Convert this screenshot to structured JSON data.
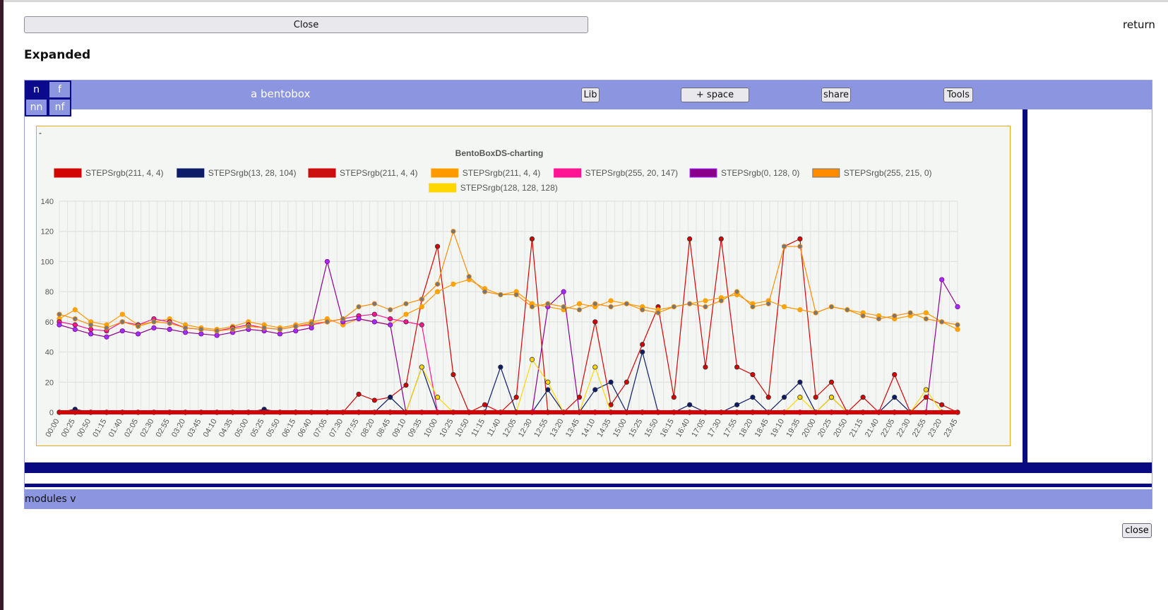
{
  "top": {
    "close_label": "Close",
    "return_label": "return",
    "heading": "Expanded"
  },
  "bento": {
    "grid_buttons": [
      "n",
      "f",
      "nn",
      "nf"
    ],
    "title": "a bentobox",
    "lib_label": "Lib",
    "space_label": "+ space",
    "share_label": "share",
    "tools_label": "Tools",
    "modules_label": "modules v",
    "dash": "-"
  },
  "footer": {
    "close_label": "close"
  },
  "colors": {
    "header_bg": "#8c95e0",
    "dark_navy": "#0a0a80"
  },
  "chart_data": {
    "type": "line",
    "title": "BentoBoxDS-charting",
    "legend_position": "top",
    "grid": true,
    "ylim": [
      0,
      140
    ],
    "yticks": [
      0,
      20,
      40,
      60,
      80,
      100,
      120,
      140
    ],
    "x_tick_labels": [
      "00:00",
      "00:25",
      "00:50",
      "01:15",
      "01:40",
      "02:05",
      "02:30",
      "02:55",
      "03:20",
      "03:45",
      "04:10",
      "04:35",
      "05:00",
      "05:25",
      "05:50",
      "06:15",
      "06:40",
      "07:05",
      "07:30",
      "07:55",
      "08:20",
      "08:45",
      "09:10",
      "09:35",
      "10:00",
      "10:25",
      "10:50",
      "11:15",
      "11:40",
      "12:05",
      "12:30",
      "12:55",
      "13:20",
      "13:45",
      "14:10",
      "14:35",
      "15:00",
      "15:25",
      "15:50",
      "16:15",
      "16:40",
      "17:05",
      "17:30",
      "17:55",
      "18:20",
      "18:45",
      "19:10",
      "19:35",
      "20:00",
      "20:25",
      "20:50",
      "21:15",
      "21:40",
      "22:05",
      "22:30",
      "22:55",
      "23:20",
      "23:45"
    ],
    "series": [
      {
        "name": "STEPSrgb(211, 4, 4)",
        "color": "#d30404",
        "point": "#d30404",
        "values": [
          0,
          0,
          0,
          0,
          0,
          0,
          0,
          0,
          0,
          0,
          0,
          0,
          0,
          0,
          0,
          0,
          0,
          0,
          0,
          12,
          8,
          10,
          18,
          75,
          110,
          25,
          0,
          5,
          0,
          10,
          115,
          0,
          0,
          10,
          60,
          5,
          20,
          45,
          70,
          10,
          115,
          30,
          115,
          30,
          25,
          10,
          110,
          115,
          10,
          20,
          0,
          10,
          0,
          25,
          0,
          10,
          5,
          0
        ]
      },
      {
        "name": "STEPSrgb(13, 28, 104)",
        "color": "#0d1c68",
        "point": "#0d1c68",
        "values": [
          0,
          2,
          0,
          0,
          0,
          0,
          0,
          0,
          0,
          0,
          0,
          0,
          0,
          2,
          0,
          0,
          0,
          0,
          0,
          0,
          0,
          10,
          0,
          30,
          0,
          0,
          0,
          0,
          30,
          0,
          0,
          15,
          0,
          0,
          15,
          20,
          0,
          40,
          0,
          0,
          5,
          0,
          0,
          5,
          10,
          0,
          10,
          20,
          0,
          10,
          0,
          0,
          0,
          10,
          0,
          0,
          0,
          0
        ]
      },
      {
        "name": "STEPSrgb(211, 4, 4)",
        "color": "#cc1010",
        "point": "#d30404",
        "values": [
          0,
          0,
          0,
          0,
          0,
          0,
          0,
          0,
          0,
          0,
          0,
          0,
          0,
          0,
          0,
          0,
          0,
          0,
          0,
          0,
          0,
          0,
          0,
          0,
          0,
          0,
          0,
          0,
          0,
          0,
          0,
          0,
          0,
          0,
          0,
          0,
          0,
          0,
          0,
          0,
          0,
          0,
          0,
          0,
          0,
          0,
          0,
          0,
          0,
          0,
          0,
          0,
          0,
          0,
          0,
          0,
          0,
          0
        ]
      },
      {
        "name": "STEPSrgb(211, 4, 4)",
        "color": "#ff9900",
        "point": "#ffa500",
        "values": [
          62,
          68,
          60,
          58,
          65,
          58,
          60,
          62,
          58,
          56,
          55,
          57,
          60,
          58,
          56,
          58,
          60,
          62,
          58,
          62,
          60,
          58,
          65,
          70,
          80,
          85,
          88,
          82,
          78,
          80,
          72,
          70,
          68,
          72,
          70,
          74,
          72,
          70,
          68,
          70,
          72,
          74,
          76,
          78,
          72,
          74,
          70,
          68,
          66,
          70,
          68,
          66,
          64,
          62,
          64,
          66,
          60,
          55
        ]
      },
      {
        "name": "STEPSrgb(255, 20, 147)",
        "color": "#ff1493",
        "point": "#ff1493",
        "values": [
          60,
          58,
          55,
          54,
          60,
          58,
          62,
          60,
          56,
          55,
          54,
          56,
          58,
          56,
          55,
          57,
          58,
          60,
          62,
          64,
          65,
          62,
          60,
          58,
          0,
          0,
          0,
          0,
          0,
          0,
          0,
          0,
          0,
          0,
          0,
          0,
          0,
          0,
          0,
          0,
          0,
          0,
          0,
          0,
          0,
          0,
          0,
          0,
          0,
          0,
          0,
          0,
          0,
          0,
          0,
          0,
          0,
          0
        ]
      },
      {
        "name": "STEPSrgb(0, 128, 0)",
        "color": "#8b008b",
        "point": "#9b30ff",
        "values": [
          58,
          55,
          52,
          50,
          54,
          52,
          56,
          55,
          53,
          52,
          51,
          53,
          55,
          54,
          52,
          54,
          56,
          100,
          60,
          62,
          60,
          58,
          0,
          0,
          0,
          0,
          0,
          0,
          0,
          0,
          0,
          70,
          80,
          0,
          0,
          0,
          0,
          0,
          0,
          0,
          0,
          0,
          0,
          0,
          0,
          0,
          0,
          0,
          0,
          0,
          0,
          0,
          0,
          0,
          0,
          0,
          88,
          70
        ]
      },
      {
        "name": "STEPSrgb(255, 215, 0)",
        "color": "#ff8c00",
        "point": "#777777",
        "values": [
          65,
          62,
          58,
          56,
          60,
          57,
          60,
          59,
          56,
          55,
          54,
          55,
          57,
          56,
          55,
          57,
          59,
          60,
          62,
          70,
          72,
          68,
          72,
          75,
          85,
          120,
          90,
          80,
          78,
          78,
          70,
          72,
          70,
          68,
          72,
          70,
          72,
          68,
          66,
          70,
          72,
          70,
          74,
          80,
          70,
          72,
          110,
          110,
          66,
          70,
          68,
          64,
          62,
          64,
          66,
          62,
          60,
          58
        ]
      },
      {
        "name": "STEPSrgb(128, 128, 128)",
        "color": "#ffd700",
        "point": "#ffd700",
        "values": [
          0,
          0,
          0,
          0,
          0,
          0,
          0,
          0,
          0,
          0,
          0,
          0,
          0,
          0,
          0,
          0,
          0,
          0,
          0,
          0,
          0,
          0,
          0,
          30,
          10,
          0,
          0,
          0,
          0,
          0,
          35,
          20,
          0,
          0,
          30,
          0,
          0,
          0,
          0,
          0,
          0,
          0,
          0,
          0,
          0,
          0,
          0,
          10,
          0,
          10,
          0,
          0,
          0,
          0,
          0,
          15,
          0,
          0
        ]
      }
    ]
  }
}
